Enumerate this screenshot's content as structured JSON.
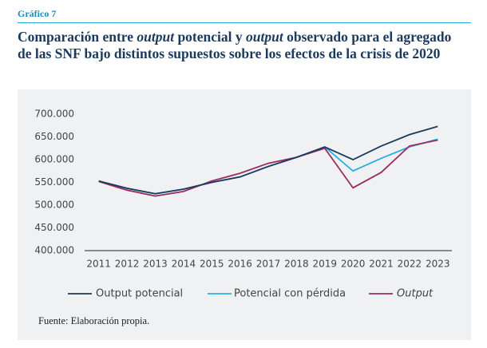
{
  "chart_data": {
    "type": "line",
    "label": "Gráfico 7",
    "title": [
      {
        "text": "Comparación entre ",
        "italic": false
      },
      {
        "text": "output",
        "italic": true
      },
      {
        "text": " potencial y ",
        "italic": false
      },
      {
        "text": "output",
        "italic": true
      },
      {
        "text": " observado para el agregado de las SNF bajo distintos supuestos sobre los efectos de la crisis de 2020",
        "italic": false
      }
    ],
    "categories": [
      "2011",
      "2012",
      "2013",
      "2014",
      "2015",
      "2016",
      "2017",
      "2018",
      "2019",
      "2020",
      "2021",
      "2022",
      "2023"
    ],
    "series": [
      {
        "name": "Output potencial",
        "color": "#1b3a5c",
        "italic": false,
        "values": [
          553000,
          537000,
          525000,
          535000,
          550000,
          562000,
          585000,
          605000,
          628000,
          600000,
          630000,
          655000,
          673000
        ]
      },
      {
        "name": "Potencial con pérdida",
        "color": "#29aee0",
        "italic": false,
        "values": [
          553000,
          537000,
          525000,
          535000,
          550000,
          562000,
          585000,
          605000,
          628000,
          575000,
          603000,
          628000,
          645000
        ]
      },
      {
        "name": "Output",
        "color": "#9c2a62",
        "italic": true,
        "values": [
          552000,
          533000,
          520000,
          530000,
          553000,
          570000,
          592000,
          605000,
          625000,
          538000,
          572000,
          630000,
          643000
        ]
      }
    ],
    "ylim": [
      400000,
      700000
    ],
    "yticks": [
      {
        "value": 400000,
        "label": "400.000"
      },
      {
        "value": 450000,
        "label": "450.000"
      },
      {
        "value": 500000,
        "label": "500.000"
      },
      {
        "value": 550000,
        "label": "550.000"
      },
      {
        "value": 600000,
        "label": "600.000"
      },
      {
        "value": 650000,
        "label": "650.000"
      },
      {
        "value": 700000,
        "label": "700.000"
      }
    ],
    "grid": false,
    "legend": "bottom",
    "source": "Fuente: Elaboración propia."
  }
}
